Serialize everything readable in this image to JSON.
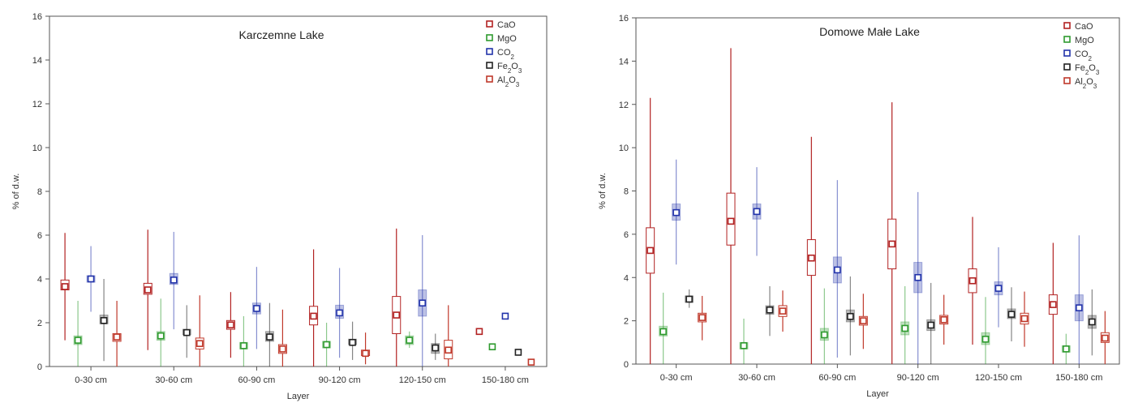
{
  "chart_data": [
    {
      "type": "box",
      "title": "Karczemne Lake",
      "xlabel": "Layer",
      "ylabel": "% of d.w.",
      "ylim": [
        0,
        16
      ],
      "yticks": [
        0,
        2,
        4,
        6,
        8,
        10,
        12,
        14,
        16
      ],
      "categories": [
        "0-30 cm",
        "30-60 cm",
        "60-90 cm",
        "90-120 cm",
        "120-150 cm",
        "150-180 cm"
      ],
      "legend_position": "top-right",
      "series": [
        {
          "name": "CaO",
          "sub": "",
          "color": "#b22222",
          "filled": false,
          "boxes": [
            {
              "median": 3.65,
              "q1": 3.5,
              "q3": 3.95,
              "min": 1.2,
              "max": 6.1
            },
            {
              "median": 3.5,
              "q1": 3.3,
              "q3": 3.8,
              "min": 0.75,
              "max": 6.25
            },
            {
              "median": 1.9,
              "q1": 1.7,
              "q3": 2.1,
              "min": 0.4,
              "max": 3.4
            },
            {
              "median": 2.3,
              "q1": 1.9,
              "q3": 2.75,
              "min": 0.0,
              "max": 5.35
            },
            {
              "median": 2.35,
              "q1": 1.5,
              "q3": 3.2,
              "min": 0.0,
              "max": 6.3
            },
            {
              "median": 1.6,
              "q1": 1.6,
              "q3": 1.6,
              "min": 1.6,
              "max": 1.6
            }
          ]
        },
        {
          "name": "MgO",
          "sub": "",
          "color": "#2e9a2e",
          "filled": true,
          "boxes": [
            {
              "median": 1.2,
              "q1": 1.0,
              "q3": 1.4,
              "min": 0.0,
              "max": 3.0
            },
            {
              "median": 1.4,
              "q1": 1.2,
              "q3": 1.6,
              "min": 0.0,
              "max": 3.1
            },
            {
              "median": 0.95,
              "q1": 0.8,
              "q3": 1.1,
              "min": 0.0,
              "max": 2.3
            },
            {
              "median": 1.0,
              "q1": 0.85,
              "q3": 1.15,
              "min": 0.0,
              "max": 2.0
            },
            {
              "median": 1.2,
              "q1": 1.0,
              "q3": 1.4,
              "min": 0.85,
              "max": 1.6
            },
            {
              "median": 0.9,
              "q1": 0.9,
              "q3": 0.9,
              "min": 0.9,
              "max": 0.9
            }
          ]
        },
        {
          "name": "CO",
          "sub": "2",
          "color": "#2233aa",
          "filled": true,
          "boxes": [
            {
              "median": 4.0,
              "q1": 3.85,
              "q3": 4.15,
              "min": 2.5,
              "max": 5.5
            },
            {
              "median": 3.95,
              "q1": 3.75,
              "q3": 4.25,
              "min": 1.7,
              "max": 6.15
            },
            {
              "median": 2.65,
              "q1": 2.4,
              "q3": 2.9,
              "min": 0.8,
              "max": 4.55
            },
            {
              "median": 2.45,
              "q1": 2.2,
              "q3": 2.8,
              "min": 0.4,
              "max": 4.5
            },
            {
              "median": 2.9,
              "q1": 2.3,
              "q3": 3.5,
              "min": 0.0,
              "max": 6.0
            },
            {
              "median": 2.3,
              "q1": 2.3,
              "q3": 2.3,
              "min": 2.3,
              "max": 2.3
            }
          ]
        },
        {
          "name": "Fe",
          "sub": "2",
          "name2": "O",
          "sub2": "3",
          "color": "#222222",
          "filled": true,
          "boxes": [
            {
              "median": 2.1,
              "q1": 1.95,
              "q3": 2.35,
              "min": 0.25,
              "max": 4.0
            },
            {
              "median": 1.55,
              "q1": 1.45,
              "q3": 1.7,
              "min": 0.4,
              "max": 2.8
            },
            {
              "median": 1.35,
              "q1": 1.15,
              "q3": 1.6,
              "min": 0.0,
              "max": 2.9
            },
            {
              "median": 1.1,
              "q1": 1.0,
              "q3": 1.25,
              "min": 0.3,
              "max": 2.05
            },
            {
              "median": 0.85,
              "q1": 0.6,
              "q3": 1.05,
              "min": 0.3,
              "max": 1.5
            },
            {
              "median": 0.65,
              "q1": 0.65,
              "q3": 0.65,
              "min": 0.65,
              "max": 0.65
            }
          ]
        },
        {
          "name": "Al",
          "sub": "2",
          "name2": "O",
          "sub2": "3",
          "color": "#c0392b",
          "filled": false,
          "boxes": [
            {
              "median": 1.35,
              "q1": 1.15,
              "q3": 1.5,
              "min": 0.0,
              "max": 3.0
            },
            {
              "median": 1.05,
              "q1": 0.8,
              "q3": 1.3,
              "min": 0.0,
              "max": 3.25
            },
            {
              "median": 0.8,
              "q1": 0.6,
              "q3": 1.0,
              "min": 0.0,
              "max": 2.6
            },
            {
              "median": 0.6,
              "q1": 0.5,
              "q3": 0.75,
              "min": 0.1,
              "max": 1.55
            },
            {
              "median": 0.75,
              "q1": 0.35,
              "q3": 1.2,
              "min": 0.0,
              "max": 2.8
            },
            {
              "median": 0.2,
              "q1": 0.2,
              "q3": 0.2,
              "min": 0.2,
              "max": 0.2
            }
          ]
        }
      ]
    },
    {
      "type": "box",
      "title": "Domowe Małe Lake",
      "xlabel": "Layer",
      "ylabel": "% of d.w.",
      "ylim": [
        0,
        16
      ],
      "yticks": [
        0,
        2,
        4,
        6,
        8,
        10,
        12,
        14,
        16
      ],
      "categories": [
        "0-30 cm",
        "30-60 cm",
        "60-90 cm",
        "90-120 cm",
        "120-150 cm",
        "150-180 cm"
      ],
      "legend_position": "top-right",
      "series": [
        {
          "name": "CaO",
          "sub": "",
          "color": "#b22222",
          "filled": false,
          "boxes": [
            {
              "median": 5.25,
              "q1": 4.2,
              "q3": 6.3,
              "min": 0.0,
              "max": 12.3
            },
            {
              "median": 6.6,
              "q1": 5.5,
              "q3": 7.9,
              "min": 0.0,
              "max": 14.6
            },
            {
              "median": 4.9,
              "q1": 4.1,
              "q3": 5.75,
              "min": 0.0,
              "max": 10.5
            },
            {
              "median": 5.55,
              "q1": 4.4,
              "q3": 6.7,
              "min": 0.0,
              "max": 12.1
            },
            {
              "median": 3.85,
              "q1": 3.3,
              "q3": 4.4,
              "min": 0.9,
              "max": 6.8
            },
            {
              "median": 2.75,
              "q1": 2.3,
              "q3": 3.2,
              "min": 0.0,
              "max": 5.6
            }
          ]
        },
        {
          "name": "MgO",
          "sub": "",
          "color": "#2e9a2e",
          "filled": true,
          "boxes": [
            {
              "median": 1.5,
              "q1": 1.3,
              "q3": 1.75,
              "min": 0.0,
              "max": 3.3
            },
            {
              "median": 0.85,
              "q1": 0.7,
              "q3": 1.0,
              "min": 0.0,
              "max": 2.1
            },
            {
              "median": 1.35,
              "q1": 1.1,
              "q3": 1.65,
              "min": 0.0,
              "max": 3.5
            },
            {
              "median": 1.65,
              "q1": 1.35,
              "q3": 1.95,
              "min": 0.0,
              "max": 3.6
            },
            {
              "median": 1.15,
              "q1": 0.9,
              "q3": 1.45,
              "min": 0.0,
              "max": 3.1
            },
            {
              "median": 0.7,
              "q1": 0.55,
              "q3": 0.85,
              "min": 0.0,
              "max": 1.4
            }
          ]
        },
        {
          "name": "CO",
          "sub": "2",
          "color": "#2233aa",
          "filled": true,
          "boxes": [
            {
              "median": 7.0,
              "q1": 6.65,
              "q3": 7.4,
              "min": 4.6,
              "max": 9.45
            },
            {
              "median": 7.05,
              "q1": 6.7,
              "q3": 7.4,
              "min": 5.0,
              "max": 9.1
            },
            {
              "median": 4.35,
              "q1": 3.75,
              "q3": 4.95,
              "min": 0.3,
              "max": 8.5
            },
            {
              "median": 4.0,
              "q1": 3.3,
              "q3": 4.7,
              "min": 0.0,
              "max": 7.95
            },
            {
              "median": 3.5,
              "q1": 3.2,
              "q3": 3.8,
              "min": 1.7,
              "max": 5.4
            },
            {
              "median": 2.6,
              "q1": 2.0,
              "q3": 3.2,
              "min": 0.0,
              "max": 5.95
            }
          ]
        },
        {
          "name": "Fe",
          "sub": "2",
          "name2": "O",
          "sub2": "3",
          "color": "#222222",
          "filled": true,
          "boxes": [
            {
              "median": 3.0,
              "q1": 2.85,
              "q3": 3.15,
              "min": 2.6,
              "max": 3.45
            },
            {
              "median": 2.5,
              "q1": 2.3,
              "q3": 2.7,
              "min": 1.3,
              "max": 3.6
            },
            {
              "median": 2.2,
              "q1": 1.95,
              "q3": 2.5,
              "min": 0.4,
              "max": 4.05
            },
            {
              "median": 1.8,
              "q1": 1.55,
              "q3": 2.05,
              "min": 0.0,
              "max": 3.75
            },
            {
              "median": 2.3,
              "q1": 2.1,
              "q3": 2.55,
              "min": 1.05,
              "max": 3.55
            },
            {
              "median": 1.95,
              "q1": 1.65,
              "q3": 2.25,
              "min": 0.4,
              "max": 3.45
            }
          ]
        },
        {
          "name": "Al",
          "sub": "2",
          "name2": "O",
          "sub2": "3",
          "color": "#c0392b",
          "filled": false,
          "boxes": [
            {
              "median": 2.15,
              "q1": 1.95,
              "q3": 2.35,
              "min": 1.1,
              "max": 3.15
            },
            {
              "median": 2.45,
              "q1": 2.2,
              "q3": 2.7,
              "min": 1.5,
              "max": 3.4
            },
            {
              "median": 2.0,
              "q1": 1.8,
              "q3": 2.2,
              "min": 0.7,
              "max": 3.25
            },
            {
              "median": 2.05,
              "q1": 1.85,
              "q3": 2.25,
              "min": 0.9,
              "max": 3.2
            },
            {
              "median": 2.1,
              "q1": 1.85,
              "q3": 2.35,
              "min": 0.8,
              "max": 3.35
            },
            {
              "median": 1.2,
              "q1": 1.0,
              "q3": 1.45,
              "min": 0.0,
              "max": 2.45
            }
          ]
        }
      ]
    }
  ]
}
